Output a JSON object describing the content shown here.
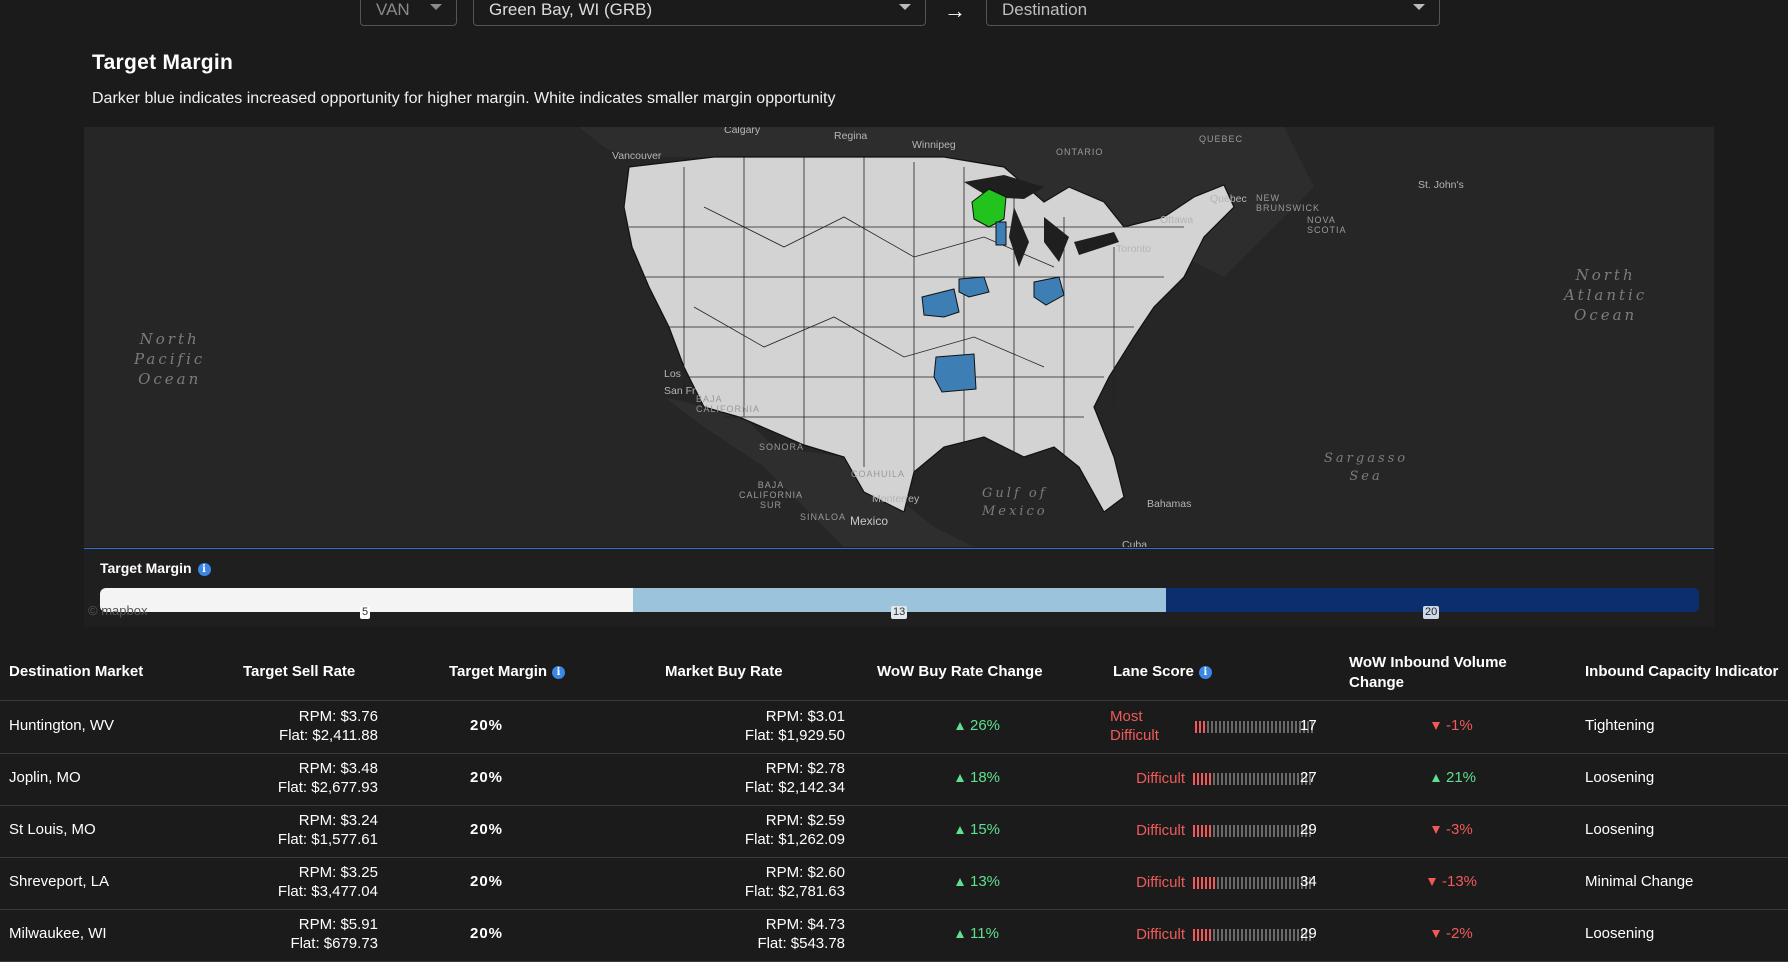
{
  "filters": {
    "mode": "VAN",
    "origin": "Green Bay, WI (GRB)",
    "destination_placeholder": "Destination"
  },
  "section": {
    "title": "Target Margin",
    "subtitle": "Darker blue indicates increased opportunity for higher margin. White indicates smaller margin opportunity"
  },
  "map": {
    "oceans": {
      "pacific": [
        "North",
        "Pacific",
        "Ocean"
      ],
      "atlantic": [
        "North",
        "Atlantic",
        "Ocean"
      ],
      "gulf": [
        "Gulf of",
        "Mexico"
      ],
      "sargasso": [
        "Sargasso",
        "Sea"
      ]
    },
    "places": {
      "vancouver": "Vancouver",
      "regina": "Regina",
      "winnipeg": "Winnipeg",
      "calgary": "Calgary",
      "ontario": "ONTARIO",
      "quebec_prov": "QUEBEC",
      "quebec_city": "Quebec",
      "ottawa": "Ottawa",
      "toronto": "Toronto",
      "new_brunswick": "NEW\nBRUNSWICK",
      "nova_scotia": "NOVA\nSCOTIA",
      "st_johns": "St. John's",
      "baja_california": "BAJA\nCALIFORNIA",
      "sonora": "SONORA",
      "coahuila": "COAHUILA",
      "baja_california_sur": "BAJA\nCALIFORNIA\nSUR",
      "sinaloa": "SINALOA",
      "monterrey": "Monterrey",
      "mexico": "Mexico",
      "bahamas": "Bahamas",
      "cuba": "Cuba",
      "san_fr": "San Fr",
      "los": "Los",
      "mapbox": "© mapbox"
    },
    "colors": {
      "land_base": "#d3d3d3",
      "highlight_origin": "#22c31d",
      "destination_blue": "#3d7fb4",
      "background": "#262626"
    }
  },
  "legend": {
    "title": "Target Margin",
    "ticks": [
      "5",
      "13",
      "20"
    ],
    "colors": [
      "#f4f4f4",
      "#9bc3dc",
      "#0b2f6e"
    ]
  },
  "table": {
    "headers": {
      "destination_market": "Destination Market",
      "target_sell_rate": "Target Sell Rate",
      "target_margin": "Target Margin",
      "market_buy_rate": "Market Buy Rate",
      "wow_buy_rate_change": "WoW Buy Rate Change",
      "lane_score": "Lane Score",
      "wow_inbound_volume_change_line1": "WoW Inbound Volume",
      "wow_inbound_volume_change_line2": "Change",
      "inbound_capacity_indicator": "Inbound Capacity Indicator"
    },
    "rows": [
      {
        "market": "Huntington, WV",
        "sell_rpm": "RPM: $3.76",
        "sell_flat": "Flat: $2,411.88",
        "margin": "20%",
        "buy_rpm": "RPM: $3.01",
        "buy_flat": "Flat: $1,929.50",
        "buy_change": "26%",
        "buy_change_dir": "up",
        "difficulty_line1": "Most",
        "difficulty_line2": "Difficult",
        "lane_score": "17",
        "volume_change": "-1%",
        "volume_change_dir": "down",
        "capacity": "Tightening"
      },
      {
        "market": "Joplin, MO",
        "sell_rpm": "RPM: $3.48",
        "sell_flat": "Flat: $2,677.93",
        "margin": "20%",
        "buy_rpm": "RPM: $2.78",
        "buy_flat": "Flat: $2,142.34",
        "buy_change": "18%",
        "buy_change_dir": "up",
        "difficulty_line1": "",
        "difficulty_line2": "Difficult",
        "lane_score": "27",
        "volume_change": "21%",
        "volume_change_dir": "up",
        "capacity": "Loosening"
      },
      {
        "market": "St Louis, MO",
        "sell_rpm": "RPM: $3.24",
        "sell_flat": "Flat: $1,577.61",
        "margin": "20%",
        "buy_rpm": "RPM: $2.59",
        "buy_flat": "Flat: $1,262.09",
        "buy_change": "15%",
        "buy_change_dir": "up",
        "difficulty_line1": "",
        "difficulty_line2": "Difficult",
        "lane_score": "29",
        "volume_change": "-3%",
        "volume_change_dir": "down",
        "capacity": "Loosening"
      },
      {
        "market": "Shreveport, LA",
        "sell_rpm": "RPM: $3.25",
        "sell_flat": "Flat: $3,477.04",
        "margin": "20%",
        "buy_rpm": "RPM: $2.60",
        "buy_flat": "Flat: $2,781.63",
        "buy_change": "13%",
        "buy_change_dir": "up",
        "difficulty_line1": "",
        "difficulty_line2": "Difficult",
        "lane_score": "34",
        "volume_change": "-13%",
        "volume_change_dir": "down",
        "capacity": "Minimal Change"
      },
      {
        "market": "Milwaukee, WI",
        "sell_rpm": "RPM: $5.91",
        "sell_flat": "Flat: $679.73",
        "margin": "20%",
        "buy_rpm": "RPM: $4.73",
        "buy_flat": "Flat: $543.78",
        "buy_change": "11%",
        "buy_change_dir": "up",
        "difficulty_line1": "",
        "difficulty_line2": "Difficult",
        "lane_score": "29",
        "volume_change": "-2%",
        "volume_change_dir": "down",
        "capacity": "Loosening"
      }
    ]
  }
}
